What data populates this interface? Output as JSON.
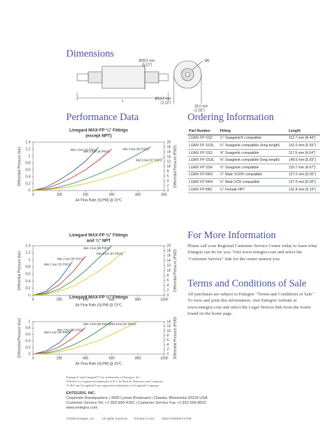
{
  "dimensions": {
    "heading": "Dimensions",
    "labels": [
      "Ø28.5 mm",
      "(1.12\")",
      "Ø6",
      "Ø54.0 mm",
      "(2.13\")",
      "26.0 mm",
      "(1.02\")",
      "L"
    ]
  },
  "performance": {
    "heading": "Performance Data"
  },
  "chart_data": [
    {
      "type": "line",
      "title": "Linegard MAX-FP ¼\" Fittings",
      "subtitle": "(except NPT)",
      "x": [
        0,
        50,
        100,
        150,
        200,
        250,
        300,
        350,
        400,
        450,
        500
      ],
      "series": [
        {
          "name": "Inlet 1 bar (15 PSIG)",
          "color": "#2a5ca8",
          "values": [
            0,
            0.1,
            0.3,
            0.55,
            0.85,
            1.25,
            null,
            null,
            null,
            null,
            null
          ]
        },
        {
          "name": "Inlet 2 bar (30 PSIG)",
          "color": "#c8332b",
          "values": [
            0,
            0.06,
            0.2,
            0.38,
            0.6,
            0.88,
            1.2,
            null,
            null,
            null,
            null
          ]
        },
        {
          "name": "Inlet 4 bar (58 PSIG)",
          "color": "#2e8a4a",
          "values": [
            0,
            0.03,
            0.1,
            0.2,
            0.33,
            0.48,
            0.65,
            0.85,
            1.05,
            1.27,
            null
          ]
        },
        {
          "name": "Inlet 6 bar (87 PSIG)",
          "color": "#e0c21f",
          "values": [
            0,
            0.02,
            0.06,
            0.12,
            0.2,
            0.3,
            0.4,
            0.52,
            0.65,
            0.8,
            0.95
          ]
        }
      ],
      "xlabel": "Air Flow Rate (SLPM) @ 23°C",
      "ylabel": "Differential Pressure (bar)",
      "y2label": "Differential Pressure (PSID)",
      "xlim": [
        0,
        500
      ],
      "xticks": [
        0,
        100,
        200,
        300,
        400,
        500
      ],
      "ylim": [
        0,
        1.4
      ],
      "yticks": [
        0,
        0.2,
        0.4,
        0.6,
        0.8,
        1.0,
        1.2,
        1.4
      ],
      "y2lim": [
        0,
        20
      ],
      "y2ticks": [
        0,
        2,
        4,
        6,
        8,
        10,
        12,
        14,
        16,
        18,
        20
      ]
    },
    {
      "type": "line",
      "title": "Linegard MAX-FP ⅜\" Fittings",
      "subtitle": "and ¼\" NPT",
      "x": [
        0,
        100,
        200,
        300,
        400,
        500,
        600,
        700,
        800,
        900,
        1000
      ],
      "series": [
        {
          "name": "Inlet 1 bar (15 PSIG)",
          "color": "#2a5ca8",
          "values": [
            0,
            0.12,
            0.45,
            0.95,
            null,
            null,
            null,
            null,
            null,
            null,
            null
          ]
        },
        {
          "name": "Inlet 2 bar (30 PSIG)",
          "color": "#c8332b",
          "values": [
            0,
            0.08,
            0.3,
            0.65,
            1.1,
            null,
            null,
            null,
            null,
            null,
            null
          ]
        },
        {
          "name": "Inlet 4 bar (58 PSIG)",
          "color": "#2e8a4a",
          "values": [
            0,
            0.05,
            0.18,
            0.4,
            0.7,
            1.05,
            1.4,
            null,
            null,
            null,
            null
          ]
        },
        {
          "name": "Inlet 6 bar (87 PSIG)",
          "color": "#e0c21f",
          "values": [
            0,
            0.03,
            0.12,
            0.25,
            0.45,
            0.68,
            0.95,
            1.25,
            null,
            null,
            null
          ]
        }
      ],
      "xlabel": "Air Flow Rate (SLPM) @ 23°C",
      "ylabel": "Differential Pressure (bar)",
      "y2label": "Differential Pressure (PSID)",
      "xlim": [
        0,
        1000
      ],
      "xticks": [
        0,
        200,
        400,
        600,
        800,
        1000
      ],
      "ylim": [
        0,
        1.4
      ],
      "yticks": [
        0,
        0.2,
        0.4,
        0.6,
        0.8,
        1.0,
        1.2,
        1.4
      ],
      "y2lim": [
        0,
        20
      ],
      "y2ticks": [
        0,
        2,
        4,
        6,
        8,
        10,
        12,
        14,
        16,
        18,
        20
      ]
    },
    {
      "type": "line",
      "title": "Linegard MAX-FP ½\" Fittings",
      "x": [
        0,
        100,
        200,
        300,
        400,
        500,
        600,
        700,
        800,
        900,
        1000
      ],
      "series": [
        {
          "name": "Inlet 1 bar (15 PSIG)",
          "color": "#2a5ca8",
          "values": [
            0,
            0.1,
            0.35,
            0.75,
            null,
            null,
            null,
            null,
            null,
            null,
            null
          ]
        },
        {
          "name": "Inlet 2 bar (30 PSIG)",
          "color": "#c8332b",
          "values": [
            0,
            0.06,
            0.22,
            0.48,
            0.82,
            null,
            null,
            null,
            null,
            null,
            null
          ]
        },
        {
          "name": "Inlet 4 bar (58 PSIG)",
          "color": "#2e8a4a",
          "values": [
            0,
            0.03,
            0.12,
            0.27,
            0.47,
            0.72,
            1.0,
            null,
            null,
            null,
            null
          ]
        },
        {
          "name": "Inlet 6 bar (87 PSIG)",
          "color": "#e0c21f",
          "values": [
            0,
            0.02,
            0.07,
            0.16,
            0.28,
            0.42,
            0.6,
            0.8,
            1.0,
            null,
            null
          ]
        }
      ],
      "xlabel": "Air Flow Rate (SLPM) @ 23°C",
      "ylabel": "Differential Pressure (bar)",
      "y2label": "Differential Pressure (PSID)",
      "xlim": [
        0,
        1000
      ],
      "xticks": [
        0,
        200,
        400,
        600,
        800,
        1000
      ],
      "ylim": [
        0,
        1.0
      ],
      "yticks": [
        0,
        0.2,
        0.4,
        0.6,
        0.8,
        1.0
      ],
      "y2lim": [
        0,
        14
      ],
      "y2ticks": [
        0,
        2,
        4,
        6,
        8,
        10,
        12,
        14
      ]
    }
  ],
  "ordering": {
    "heading": "Ordering Information",
    "columns": [
      "Part Number",
      "Fitting",
      "Length"
    ],
    "rows": [
      [
        "LGMX FP SS2",
        "¼\" Swagelok® compatible",
        "112.7 mm [4.44\"]"
      ],
      [
        "LGMX FP SS2L",
        "¼\" Swagelok compatible (long length)",
        "141.0 mm [5.55\"]"
      ],
      [
        "LGMX FP SS3",
        "⅜\" Swagelok compatible",
        "117.9 mm [4.64\"]"
      ],
      [
        "LGMX FP SS3L",
        "⅜\" Swagelok compatible (long length)",
        "148.0 mm [5.83\"]"
      ],
      [
        "LGMX FP SS4",
        "½\" Swagelok compatible",
        "118.7 mm [4.67\"]"
      ],
      [
        "LGMX FP RR2",
        "¼\" Male VCR® compatible",
        "127.0 mm [5.00\"]"
      ],
      [
        "LGMX FP RR4",
        "½\" Male VCR compatible",
        "127.0 mm [5.00\"]"
      ],
      [
        "LGMX FP BB2",
        "¼\" Female NPT",
        "131.8 mm [5.19\"]"
      ]
    ]
  },
  "more_info": {
    "heading": "For More Information",
    "text": "Please call your Regional Customer Service Center today to learn what Entegris can do for you. Visit www.entegris.com and select the \"Customer Service\" link for the center nearest you."
  },
  "terms": {
    "heading": "Terms and Conditions of Sale",
    "text": "All purchases are subject to Entegris' \"Terms and Conditions of Sale.\" To view and print this information, visit Entegris' website at www.entegris.com and select the Legal Notices link from the footer found on the home page."
  },
  "trademarks": [
    "Entegris® and Linegard™ are trademarks of Entegris, Inc.",
    "Teflon® is a registered trademark of E.I. du Pont de Nemours and Company.",
    "VCR® and Swagelok® are registered trademarks of Swagelok Company."
  ],
  "company": {
    "name": "ENTEGRIS, INC.",
    "lines": [
      "Corporate Headquarters | 3500 Lyman Boulevard | Chaska, Minnesota 55318 USA",
      "Customer Service Tel. +1 952-556-4181 | Customer Service Fax +1 952-556-8022",
      "www.entegris.com"
    ]
  },
  "footer": [
    "©2009 Entegris, Inc.",
    "All rights reserved",
    "Printed in USA",
    "4602-5766ENT-0709"
  ]
}
